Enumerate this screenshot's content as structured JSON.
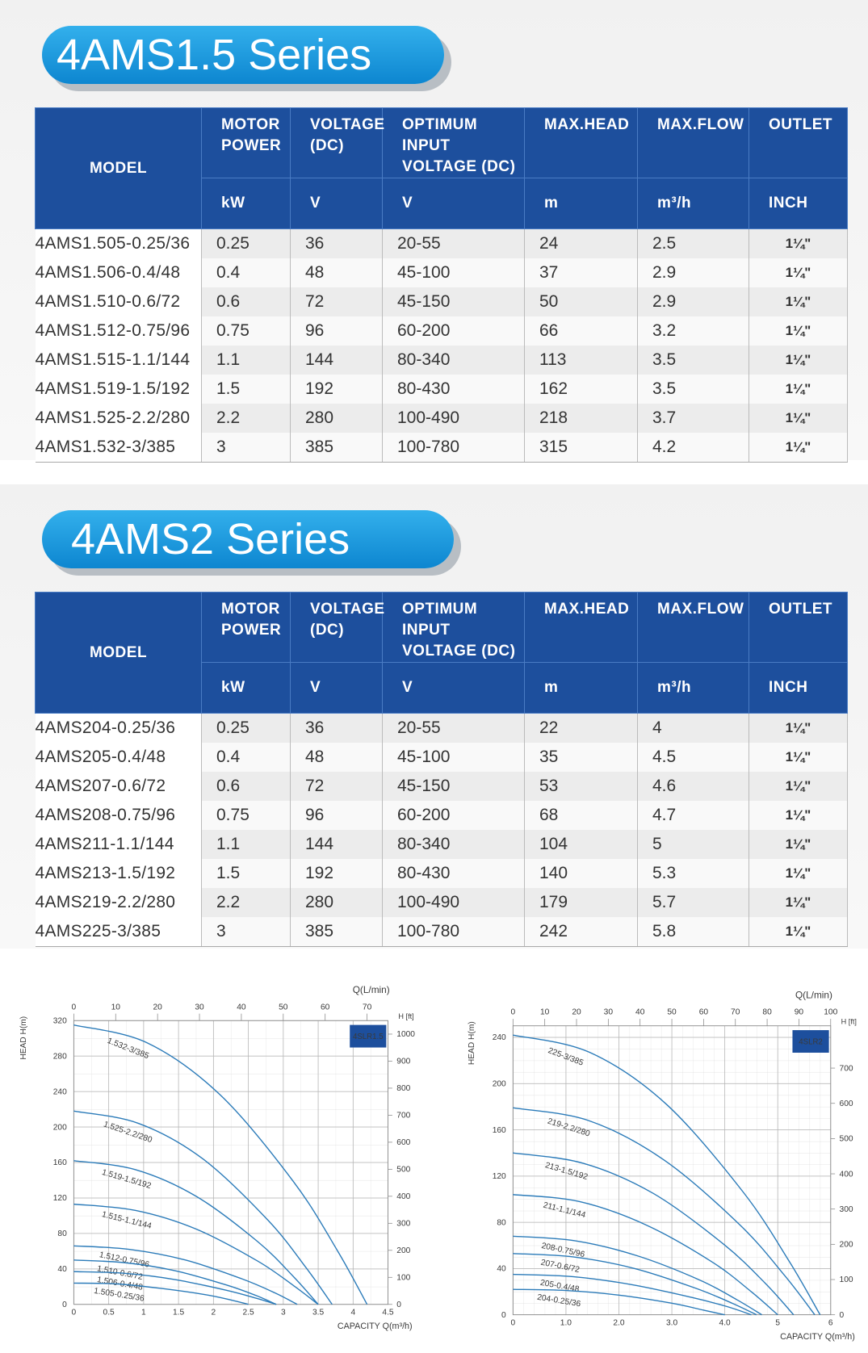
{
  "sections": [
    {
      "title": "4AMS1.5 Series",
      "table": {
        "columns": [
          "MODEL",
          "MOTOR POWER",
          "VOLTAGE (DC)",
          "OPTIMUM INPUT VOLTAGE (DC)",
          "MAX.HEAD",
          "MAX.FLOW",
          "OUTLET"
        ],
        "units": [
          "kW",
          "V",
          "V",
          "m",
          "m³/h",
          "INCH"
        ],
        "rows": [
          [
            "4AMS1.505-0.25/36",
            "0.25",
            "36",
            "20-55",
            "24",
            "2.5",
            "1¼\""
          ],
          [
            "4AMS1.506-0.4/48",
            "0.4",
            "48",
            "45-100",
            "37",
            "2.9",
            "1¼\""
          ],
          [
            "4AMS1.510-0.6/72",
            "0.6",
            "72",
            "45-150",
            "50",
            "2.9",
            "1¼\""
          ],
          [
            "4AMS1.512-0.75/96",
            "0.75",
            "96",
            "60-200",
            "66",
            "3.2",
            "1¼\""
          ],
          [
            "4AMS1.515-1.1/144",
            "1.1",
            "144",
            "80-340",
            "113",
            "3.5",
            "1¼\""
          ],
          [
            "4AMS1.519-1.5/192",
            "1.5",
            "192",
            "80-430",
            "162",
            "3.5",
            "1¼\""
          ],
          [
            "4AMS1.525-2.2/280",
            "2.2",
            "280",
            "100-490",
            "218",
            "3.7",
            "1¼\""
          ],
          [
            "4AMS1.532-3/385",
            "3",
            "385",
            "100-780",
            "315",
            "4.2",
            "1¼\""
          ]
        ]
      }
    },
    {
      "title": "4AMS2 Series",
      "table": {
        "columns": [
          "MODEL",
          "MOTOR POWER",
          "VOLTAGE (DC)",
          "OPTIMUM INPUT VOLTAGE (DC)",
          "MAX.HEAD",
          "MAX.FLOW",
          "OUTLET"
        ],
        "units": [
          "kW",
          "V",
          "V",
          "m",
          "m³/h",
          "INCH"
        ],
        "rows": [
          [
            "4AMS204-0.25/36",
            "0.25",
            "36",
            "20-55",
            "22",
            "4",
            "1¼\""
          ],
          [
            "4AMS205-0.4/48",
            "0.4",
            "48",
            "45-100",
            "35",
            "4.5",
            "1¼\""
          ],
          [
            "4AMS207-0.6/72",
            "0.6",
            "72",
            "45-150",
            "53",
            "4.6",
            "1¼\""
          ],
          [
            "4AMS208-0.75/96",
            "0.75",
            "96",
            "60-200",
            "68",
            "4.7",
            "1¼\""
          ],
          [
            "4AMS211-1.1/144",
            "1.1",
            "144",
            "80-340",
            "104",
            "5",
            "1¼\""
          ],
          [
            "4AMS213-1.5/192",
            "1.5",
            "192",
            "80-430",
            "140",
            "5.3",
            "1¼\""
          ],
          [
            "4AMS219-2.2/280",
            "2.2",
            "280",
            "100-490",
            "179",
            "5.7",
            "1¼\""
          ],
          [
            "4AMS225-3/385",
            "3",
            "385",
            "100-780",
            "242",
            "5.8",
            "1¼\""
          ]
        ]
      }
    }
  ],
  "chart_data": [
    {
      "type": "line",
      "title": "4SLR1.5",
      "x_label": "CAPACITY Q(m³/h)",
      "y_label": "HEAD H(m)",
      "x2_label": "Q(L/min)",
      "y2_label": "H [ft]",
      "xlim": [
        0,
        4.5
      ],
      "xticks": [
        0,
        0.5,
        1,
        1.5,
        2,
        2.5,
        3,
        3.5,
        4,
        4.5
      ],
      "x2lim": [
        0,
        75
      ],
      "x2ticks": [
        0,
        10,
        20,
        30,
        40,
        50,
        60,
        70
      ],
      "ylim": [
        0,
        320
      ],
      "yticks": [
        0,
        40,
        80,
        120,
        160,
        200,
        240,
        280,
        320
      ],
      "y2lim": [
        0,
        1050
      ],
      "y2ticks": [
        0,
        100,
        200,
        300,
        400,
        500,
        600,
        700,
        800,
        900,
        1000
      ],
      "grid": true,
      "series": [
        {
          "name": "1.532-3/385",
          "color": "#2b7bb9",
          "x": [
            0,
            1.05,
            2.1,
            3.15,
            3.78,
            4.2
          ],
          "values": [
            315,
            295,
            236,
            138,
            60,
            0
          ]
        },
        {
          "name": "1.525-2.2/280",
          "color": "#2b7bb9",
          "x": [
            0,
            0.93,
            1.85,
            2.78,
            3.33,
            3.7
          ],
          "values": [
            218,
            204,
            164,
            95,
            41,
            0
          ]
        },
        {
          "name": "1.519-1.5/192",
          "color": "#2b7bb9",
          "x": [
            0,
            0.88,
            1.75,
            2.63,
            3.15,
            3.5
          ],
          "values": [
            162,
            152,
            122,
            71,
            31,
            0
          ]
        },
        {
          "name": "1.515-1.1/144",
          "color": "#2b7bb9",
          "x": [
            0,
            0.88,
            1.75,
            2.63,
            3.15,
            3.5
          ],
          "values": [
            113,
            106,
            85,
            49,
            21,
            0
          ]
        },
        {
          "name": "1.512-0.75/96",
          "color": "#2b7bb9",
          "x": [
            0,
            0.8,
            1.6,
            2.4,
            2.88,
            3.2
          ],
          "values": [
            66,
            62,
            50,
            29,
            13,
            0
          ]
        },
        {
          "name": "1.510-0.6/72",
          "color": "#2b7bb9",
          "x": [
            0,
            0.73,
            1.45,
            2.18,
            2.61,
            2.9
          ],
          "values": [
            50,
            47,
            38,
            22,
            10,
            0
          ]
        },
        {
          "name": "1.506-0.4/48",
          "color": "#2b7bb9",
          "x": [
            0,
            0.73,
            1.45,
            2.18,
            2.61,
            2.9
          ],
          "values": [
            37,
            35,
            28,
            16,
            7,
            0
          ]
        },
        {
          "name": "1.505-0.25/36",
          "color": "#2b7bb9",
          "x": [
            0,
            0.63,
            1.25,
            1.88,
            2.25,
            2.5
          ],
          "values": [
            24,
            23,
            18,
            11,
            5,
            0
          ]
        }
      ]
    },
    {
      "type": "line",
      "title": "4SLR2",
      "x_label": "CAPACITY Q(m³/h)",
      "y_label": "HEAD H(m)",
      "x2_label": "Q(L/min)",
      "y2_label": "H [ft]",
      "xlim": [
        0,
        6
      ],
      "xticks": [
        0,
        {
          "value": 1,
          "label": "1.0"
        },
        {
          "value": 2,
          "label": "2.0"
        },
        {
          "value": 3,
          "label": "3.0"
        },
        {
          "value": 4,
          "label": "4.0"
        },
        5,
        6
      ],
      "x2lim": [
        0,
        100
      ],
      "x2ticks": [
        0,
        10,
        20,
        30,
        40,
        50,
        60,
        70,
        80,
        90,
        100
      ],
      "ylim": [
        0,
        250
      ],
      "yticks": [
        0,
        40,
        80,
        120,
        160,
        200,
        240
      ],
      "y2lim": [
        0,
        820
      ],
      "y2ticks": [
        0,
        100,
        200,
        300,
        400,
        500,
        600,
        700
      ],
      "grid": true,
      "series": [
        {
          "name": "225-3/385",
          "color": "#2b7bb9",
          "x": [
            0,
            1.45,
            2.9,
            4.35,
            5.22,
            5.8
          ],
          "values": [
            242,
            227,
            182,
            106,
            46,
            0
          ]
        },
        {
          "name": "219-2.2/280",
          "color": "#2b7bb9",
          "x": [
            0,
            1.43,
            2.85,
            4.28,
            5.13,
            5.7
          ],
          "values": [
            179,
            168,
            134,
            78,
            34,
            0
          ]
        },
        {
          "name": "213-1.5/192",
          "color": "#2b7bb9",
          "x": [
            0,
            1.33,
            2.65,
            3.98,
            4.77,
            5.3
          ],
          "values": [
            140,
            131,
            105,
            61,
            27,
            0
          ]
        },
        {
          "name": "211-1.1/144",
          "color": "#2b7bb9",
          "x": [
            0,
            1.25,
            2.5,
            3.75,
            4.5,
            5
          ],
          "values": [
            104,
            98,
            78,
            46,
            20,
            0
          ]
        },
        {
          "name": "208-0.75/96",
          "color": "#2b7bb9",
          "x": [
            0,
            1.18,
            2.35,
            3.53,
            4.23,
            4.7
          ],
          "values": [
            68,
            64,
            51,
            30,
            13,
            0
          ]
        },
        {
          "name": "207-0.6/72",
          "color": "#2b7bb9",
          "x": [
            0,
            1.15,
            2.3,
            3.45,
            4.14,
            4.6
          ],
          "values": [
            53,
            50,
            40,
            23,
            10,
            0
          ]
        },
        {
          "name": "205-0.4/48",
          "color": "#2b7bb9",
          "x": [
            0,
            1.13,
            2.25,
            3.38,
            4.05,
            4.5
          ],
          "values": [
            35,
            33,
            26,
            15,
            7,
            0
          ]
        },
        {
          "name": "204-0.25/36",
          "color": "#2b7bb9",
          "x": [
            0,
            1,
            2,
            3,
            3.6,
            4
          ],
          "values": [
            22,
            21,
            17,
            10,
            4,
            0
          ]
        }
      ]
    }
  ]
}
